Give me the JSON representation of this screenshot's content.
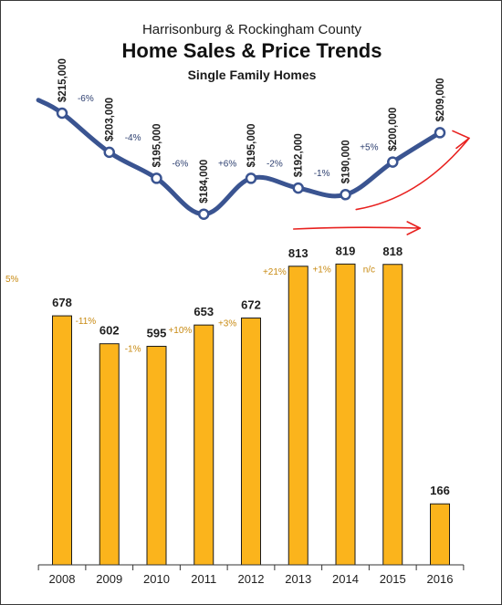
{
  "title": {
    "supertitle": "Harrisonburg & Rockingham County",
    "main": "Home Sales & Price Trends",
    "subtitle": "Single Family Homes"
  },
  "colors": {
    "bar": "#fbb41c",
    "bar_stroke": "#1a1a1a",
    "line": "#3a5491",
    "marker_fill": "#ffffff",
    "price_change_text": "#2c3e6f",
    "sales_change_text": "#c88a12",
    "arrow": "#e8211f"
  },
  "chart_data": [
    {
      "type": "line",
      "series_role": "median sales price",
      "x": [
        "2008",
        "2009",
        "2010",
        "2011",
        "2012",
        "2013",
        "2014",
        "2015",
        "2016"
      ],
      "values": [
        215000,
        203000,
        195000,
        184000,
        195000,
        192000,
        190000,
        200000,
        209000
      ],
      "labels": [
        "$215,000",
        "$203,000",
        "$195,000",
        "$184,000",
        "$195,000",
        "$192,000",
        "$190,000",
        "$200,000",
        "$209,000"
      ],
      "changes": [
        "-6%",
        "-4%",
        "-6%",
        "+6%",
        "-2%",
        "-1%",
        "+5%"
      ],
      "ylim": [
        180000,
        222000
      ],
      "extends_left_to": 219000,
      "trend_arrow": "up-right"
    },
    {
      "type": "bar",
      "series_role": "number of home sales",
      "categories": [
        "2008",
        "2009",
        "2010",
        "2011",
        "2012",
        "2013",
        "2014",
        "2015",
        "2016"
      ],
      "values": [
        678,
        602,
        595,
        653,
        672,
        813,
        819,
        818,
        166
      ],
      "changes_left_partial": "5%",
      "changes": [
        "-11%",
        "-1%",
        "+10%",
        "+3%",
        "+21%",
        "+1%",
        "n/c"
      ],
      "ylim": [
        0,
        1000
      ],
      "grid": false,
      "trend_arrow": "flat-right"
    }
  ]
}
